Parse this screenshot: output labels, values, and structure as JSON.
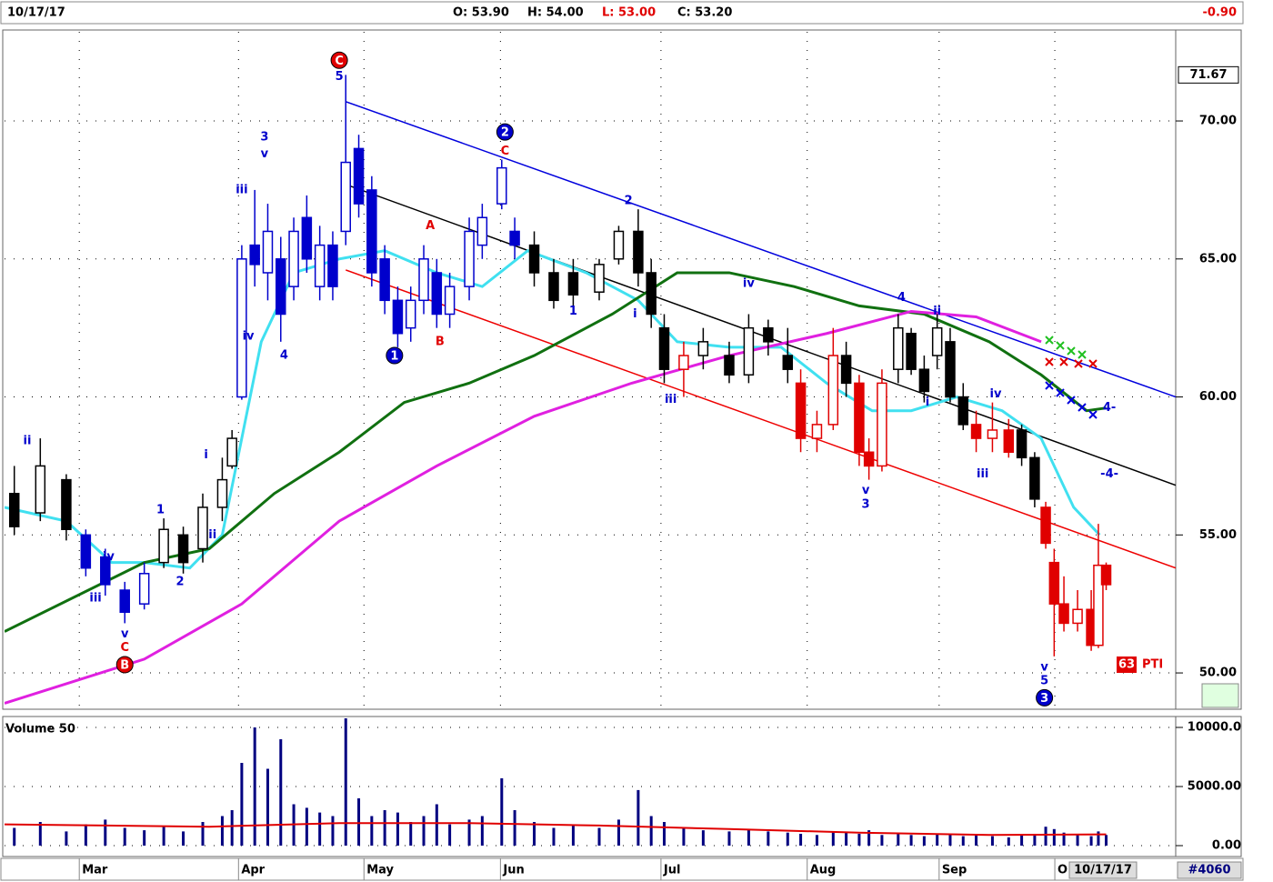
{
  "header": {
    "date": "10/17/17",
    "open": "O: 53.90",
    "high": "H: 54.00",
    "low": "L: 53.00",
    "close": "C: 53.20",
    "change": "-0.90",
    "footer_date": "10/17/17",
    "symbol_id": "#4060",
    "pti_value": "63",
    "pti_label": "PTI"
  },
  "chart_data": [
    {
      "type": "candlestick",
      "xlim": [
        -11.5,
        168.7
      ],
      "ylim": [
        48.75,
        73.23
      ],
      "xticks": [
        {
          "value": 0,
          "label": "Mar"
        },
        {
          "value": 24.5,
          "label": "Apr"
        },
        {
          "value": 43.8,
          "label": "May"
        },
        {
          "value": 64.8,
          "label": "Jun"
        },
        {
          "value": 89.5,
          "label": "Jul"
        },
        {
          "value": 112,
          "label": "Aug"
        },
        {
          "value": 132.3,
          "label": "Sep"
        },
        {
          "value": 150.1,
          "label": "O"
        }
      ],
      "yticks": [
        {
          "value": 50,
          "label": "50.00"
        },
        {
          "value": 55,
          "label": "55.00"
        },
        {
          "value": 60,
          "label": "60.00"
        },
        {
          "value": 65,
          "label": "65.00"
        },
        {
          "value": 70,
          "label": "70.00"
        }
      ],
      "grid": true,
      "last_price": 71.67,
      "x": [
        -10,
        -6,
        -2,
        1,
        4,
        7,
        10,
        13,
        16,
        19,
        22,
        23.5,
        25,
        27,
        29,
        31,
        33,
        35,
        37,
        39,
        41,
        43,
        45,
        47,
        49,
        51,
        53,
        55,
        57,
        60,
        62,
        65,
        67,
        70,
        73,
        76,
        80,
        83,
        86,
        88,
        90,
        93,
        96,
        100,
        103,
        106,
        109,
        111,
        113.5,
        116,
        118,
        120,
        121.5,
        123.5,
        126,
        128,
        130,
        132,
        134,
        136,
        138,
        140.5,
        143,
        145,
        147,
        148.7,
        150,
        151.5,
        153.6,
        155.7,
        156.8,
        158
      ],
      "open": [
        56.5,
        55.8,
        57.0,
        55.0,
        54.2,
        53.0,
        52.5,
        54.0,
        55.0,
        54.5,
        56.0,
        57.5,
        60.0,
        65.5,
        64.5,
        65.0,
        64.0,
        66.5,
        64.0,
        65.5,
        66.0,
        69.0,
        67.5,
        65.0,
        63.5,
        62.5,
        63.5,
        64.5,
        63.0,
        64.0,
        65.5,
        67.0,
        66.0,
        65.5,
        64.5,
        64.5,
        63.8,
        65.0,
        66.0,
        64.5,
        62.5,
        61.0,
        61.5,
        61.5,
        60.8,
        62.5,
        61.5,
        60.5,
        58.5,
        59.0,
        61.5,
        60.5,
        58.0,
        57.5,
        61.0,
        62.3,
        61.0,
        61.5,
        62.0,
        60.0,
        59.0,
        58.5,
        58.8,
        58.8,
        57.8,
        56.0,
        54.0,
        52.5,
        51.8,
        52.3,
        51.0,
        53.9
      ],
      "high": [
        57.5,
        58.5,
        57.2,
        55.2,
        54.5,
        53.3,
        54.0,
        55.6,
        55.3,
        56.5,
        57.8,
        58.8,
        65.5,
        67.5,
        67.0,
        65.8,
        66.5,
        67.3,
        66.2,
        66.0,
        71.67,
        69.5,
        68.0,
        65.5,
        64.0,
        64.0,
        65.5,
        65.0,
        64.5,
        66.5,
        67.0,
        68.6,
        66.5,
        66.0,
        65.0,
        65.0,
        65.0,
        66.2,
        66.8,
        65.0,
        63.0,
        62.0,
        62.5,
        62.0,
        63.0,
        62.8,
        62.5,
        61.0,
        59.5,
        62.5,
        62.0,
        60.8,
        58.5,
        61.0,
        63.0,
        62.5,
        61.5,
        63.0,
        62.5,
        60.5,
        59.5,
        59.8,
        59.2,
        59.0,
        58.0,
        56.2,
        54.5,
        53.5,
        53.0,
        53.0,
        55.4,
        54.0
      ],
      "low": [
        55.0,
        55.5,
        54.8,
        53.5,
        52.8,
        51.8,
        52.3,
        53.8,
        53.6,
        54.0,
        55.5,
        57.4,
        59.9,
        64.0,
        63.5,
        62.0,
        63.5,
        64.5,
        63.5,
        63.5,
        65.5,
        66.5,
        64.0,
        63.0,
        61.8,
        62.0,
        63.0,
        62.5,
        62.5,
        63.5,
        65.0,
        66.8,
        65.0,
        64.0,
        63.2,
        63.0,
        63.5,
        64.8,
        64.0,
        62.5,
        60.5,
        60.0,
        61.0,
        60.5,
        60.5,
        61.5,
        60.5,
        58.0,
        58.0,
        58.8,
        60.0,
        57.5,
        57.0,
        57.3,
        60.5,
        60.8,
        59.8,
        61.0,
        59.8,
        58.8,
        58.0,
        58.0,
        57.8,
        57.5,
        56.0,
        54.5,
        50.6,
        51.5,
        51.5,
        50.8,
        50.9,
        53.0
      ],
      "close": [
        55.3,
        57.5,
        55.2,
        53.8,
        53.2,
        52.2,
        53.6,
        55.2,
        54.0,
        56.0,
        57.0,
        58.5,
        65.0,
        64.8,
        66.0,
        63.0,
        66.0,
        65.0,
        65.5,
        64.0,
        68.5,
        67.0,
        64.5,
        63.5,
        62.3,
        63.5,
        65.0,
        63.0,
        64.0,
        66.0,
        66.5,
        68.3,
        65.5,
        64.5,
        63.5,
        63.7,
        64.8,
        66.0,
        64.5,
        63.0,
        61.0,
        61.5,
        62.0,
        60.8,
        62.5,
        62.0,
        61.0,
        58.5,
        59.0,
        61.5,
        60.5,
        58.0,
        57.5,
        60.5,
        62.5,
        61.0,
        60.2,
        62.5,
        60.0,
        59.0,
        58.5,
        58.8,
        58.0,
        57.8,
        56.3,
        54.7,
        52.5,
        51.8,
        52.3,
        51.0,
        53.9,
        53.2
      ],
      "colors": [
        "#000000",
        "#000000",
        "#000000",
        "#0000cc",
        "#0000cc",
        "#0000cc",
        "#0000cc",
        "#000000",
        "#000000",
        "#000000",
        "#000000",
        "#000000",
        "#0000cc",
        "#0000cc",
        "#0000cc",
        "#0000cc",
        "#0000cc",
        "#0000cc",
        "#0000cc",
        "#0000cc",
        "#0000cc",
        "#0000cc",
        "#0000cc",
        "#0000cc",
        "#0000cc",
        "#0000cc",
        "#0000cc",
        "#0000cc",
        "#0000cc",
        "#0000cc",
        "#0000cc",
        "#0000cc",
        "#0000cc",
        "#000000",
        "#000000",
        "#000000",
        "#000000",
        "#000000",
        "#000000",
        "#000000",
        "#000000",
        "#e00000",
        "#000000",
        "#000000",
        "#000000",
        "#000000",
        "#000000",
        "#e00000",
        "#e00000",
        "#e00000",
        "#000000",
        "#e00000",
        "#e00000",
        "#e00000",
        "#000000",
        "#000000",
        "#000000",
        "#000000",
        "#000000",
        "#000000",
        "#e00000",
        "#e00000",
        "#e00000",
        "#000000",
        "#000000",
        "#e00000",
        "#e00000",
        "#e00000",
        "#e00000",
        "#e00000",
        "#e00000",
        "#e00000"
      ],
      "lines": [
        {
          "color": "#40e0f0",
          "x": [
            -11.5,
            -2,
            5,
            10,
            17,
            22,
            28,
            33,
            40,
            47,
            55,
            62,
            69,
            78,
            86,
            92,
            100,
            108,
            115,
            122,
            128,
            135,
            142,
            148,
            153,
            157
          ],
          "values": [
            56,
            55.5,
            54,
            54,
            53.8,
            55,
            62,
            64.5,
            65,
            65.3,
            64.5,
            64,
            65.3,
            64.5,
            63.5,
            62,
            61.8,
            61.8,
            60.5,
            59.5,
            59.5,
            60,
            59.5,
            58.5,
            56,
            55
          ]
        },
        {
          "color": "#107010",
          "x": [
            -11.5,
            10,
            20,
            30,
            40,
            50,
            60,
            70,
            82,
            92,
            100,
            110,
            120,
            130,
            140,
            148,
            155,
            158
          ],
          "values": [
            51.5,
            54,
            54.5,
            56.5,
            58,
            59.8,
            60.5,
            61.5,
            63,
            64.5,
            64.5,
            64,
            63.3,
            63,
            62,
            60.8,
            59.5,
            59.6
          ]
        },
        {
          "color": "#e020e0",
          "x": [
            -11.5,
            10,
            25,
            40,
            55,
            70,
            85,
            100,
            115,
            128,
            138,
            148
          ],
          "values": [
            48.9,
            50.5,
            52.5,
            55.5,
            57.5,
            59.3,
            60.5,
            61.5,
            62.3,
            63.1,
            62.9,
            62
          ]
        }
      ],
      "trendlines": [
        {
          "color": "#0000dd",
          "x": [
            41,
            168.7
          ],
          "values": [
            70.7,
            60.0
          ]
        },
        {
          "color": "#000000",
          "x": [
            41,
            168.7
          ],
          "values": [
            67.7,
            56.8
          ]
        },
        {
          "color": "#ee0000",
          "x": [
            41,
            168.7
          ],
          "values": [
            64.6,
            53.8
          ]
        }
      ],
      "annotations": [
        {
          "x": -8,
          "y": 58.4,
          "text": "ii",
          "color": "#0000cc"
        },
        {
          "x": 2.5,
          "y": 52.7,
          "text": "iii",
          "color": "#0000cc"
        },
        {
          "x": 4.5,
          "y": 54.2,
          "text": "iv",
          "color": "#0000cc"
        },
        {
          "x": 7,
          "y": 51.4,
          "text": "v",
          "color": "#0000cc"
        },
        {
          "x": 7,
          "y": 50.9,
          "text": "C",
          "color": "#e00000"
        },
        {
          "x": 7,
          "y": 50.3,
          "text": "B",
          "color": "#e00000",
          "circle": true
        },
        {
          "x": 12.5,
          "y": 55.9,
          "text": "1",
          "color": "#0000cc"
        },
        {
          "x": 15.5,
          "y": 53.3,
          "text": "2",
          "color": "#0000cc"
        },
        {
          "x": 19.5,
          "y": 57.9,
          "text": "i",
          "color": "#0000cc"
        },
        {
          "x": 20.5,
          "y": 55.0,
          "text": "ii",
          "color": "#0000cc"
        },
        {
          "x": 25,
          "y": 67.5,
          "text": "iii",
          "color": "#0000cc"
        },
        {
          "x": 26,
          "y": 62.2,
          "text": "iv",
          "color": "#0000cc"
        },
        {
          "x": 28.5,
          "y": 69.4,
          "text": "3",
          "color": "#0000cc"
        },
        {
          "x": 28.5,
          "y": 68.8,
          "text": "v",
          "color": "#0000cc"
        },
        {
          "x": 31.5,
          "y": 61.5,
          "text": "4",
          "color": "#0000cc"
        },
        {
          "x": 40,
          "y": 71.6,
          "text": "5",
          "color": "#0000cc"
        },
        {
          "x": 40,
          "y": 72.2,
          "text": "C",
          "color": "#e00000",
          "circle": true
        },
        {
          "x": 48.5,
          "y": 61.5,
          "text": "1",
          "color": "#0000cc",
          "circle": true
        },
        {
          "x": 54,
          "y": 66.2,
          "text": "A",
          "color": "#e00000"
        },
        {
          "x": 55.5,
          "y": 62.0,
          "text": "B",
          "color": "#e00000"
        },
        {
          "x": 65.5,
          "y": 69.6,
          "text": "2",
          "color": "#0000cc",
          "circle": true
        },
        {
          "x": 65.5,
          "y": 68.9,
          "text": "C",
          "color": "#e00000"
        },
        {
          "x": 76,
          "y": 63.1,
          "text": "1",
          "color": "#0000cc"
        },
        {
          "x": 84.5,
          "y": 67.1,
          "text": "2",
          "color": "#0000cc"
        },
        {
          "x": 85.5,
          "y": 63.0,
          "text": "i",
          "color": "#0000cc"
        },
        {
          "x": 91,
          "y": 59.9,
          "text": "iii",
          "color": "#0000cc"
        },
        {
          "x": 103,
          "y": 64.1,
          "text": "iv",
          "color": "#0000cc"
        },
        {
          "x": 121,
          "y": 56.6,
          "text": "v",
          "color": "#0000cc"
        },
        {
          "x": 121,
          "y": 56.1,
          "text": "3",
          "color": "#0000cc"
        },
        {
          "x": 126.5,
          "y": 63.6,
          "text": "4",
          "color": "#0000cc"
        },
        {
          "x": 130.5,
          "y": 59.8,
          "text": "i",
          "color": "#0000cc"
        },
        {
          "x": 132,
          "y": 63.1,
          "text": "ii",
          "color": "#0000cc"
        },
        {
          "x": 139,
          "y": 57.2,
          "text": "iii",
          "color": "#0000cc"
        },
        {
          "x": 141,
          "y": 60.1,
          "text": "iv",
          "color": "#0000cc"
        },
        {
          "x": 148.5,
          "y": 50.2,
          "text": "v",
          "color": "#0000cc"
        },
        {
          "x": 148.5,
          "y": 49.7,
          "text": "5",
          "color": "#0000cc"
        },
        {
          "x": 148.5,
          "y": 49.1,
          "text": "3",
          "color": "#0000cc",
          "circle": true
        },
        {
          "x": 158.5,
          "y": 59.6,
          "text": "4-",
          "color": "#0000cc"
        },
        {
          "x": 158.5,
          "y": 57.2,
          "text": "-4-",
          "color": "#0000cc"
        }
      ]
    },
    {
      "type": "bar",
      "title": "Volume 50",
      "color": "#000080",
      "xlim": [
        -11.5,
        168.7
      ],
      "ylim": [
        -770,
        10770
      ],
      "yticks": [
        {
          "value": 0,
          "label": "0.00"
        },
        {
          "value": 5000,
          "label": "5000.00"
        },
        {
          "value": 10000,
          "label": "10000.0"
        }
      ],
      "x": [
        -10,
        -6,
        -2,
        1,
        4,
        7,
        10,
        13,
        16,
        19,
        22,
        23.5,
        25,
        27,
        29,
        31,
        33,
        35,
        37,
        39,
        41,
        43,
        45,
        47,
        49,
        51,
        53,
        55,
        57,
        60,
        62,
        65,
        67,
        70,
        73,
        76,
        80,
        83,
        86,
        88,
        90,
        93,
        96,
        100,
        103,
        106,
        109,
        111,
        113.5,
        116,
        118,
        120,
        121.5,
        123.5,
        126,
        128,
        130,
        132,
        134,
        136,
        138,
        140.5,
        143,
        145,
        147,
        148.7,
        150,
        151.5,
        153.6,
        155.7,
        156.8,
        158
      ],
      "values": [
        1500,
        2000,
        1200,
        1800,
        2200,
        1500,
        1300,
        1600,
        1200,
        2000,
        2500,
        3000,
        7000,
        10000,
        6500,
        9000,
        3500,
        3200,
        2800,
        2500,
        10770,
        4000,
        2500,
        3000,
        2800,
        2000,
        2500,
        3500,
        1800,
        2200,
        2500,
        5700,
        3000,
        2000,
        1500,
        1800,
        1500,
        2200,
        4700,
        2500,
        2000,
        1500,
        1300,
        1200,
        1400,
        1200,
        1100,
        1000,
        900,
        1200,
        1100,
        1000,
        1300,
        900,
        1000,
        900,
        800,
        1000,
        900,
        800,
        900,
        800,
        700,
        900,
        1000,
        1600,
        1400,
        1100,
        900,
        800,
        1200,
        900
      ],
      "average": {
        "color": "#e00000",
        "x": [
          -11.5,
          20,
          40,
          60,
          80,
          100,
          120,
          140,
          158
        ],
        "values": [
          1800,
          1600,
          1900,
          1900,
          1700,
          1400,
          1100,
          900,
          950
        ]
      }
    }
  ]
}
